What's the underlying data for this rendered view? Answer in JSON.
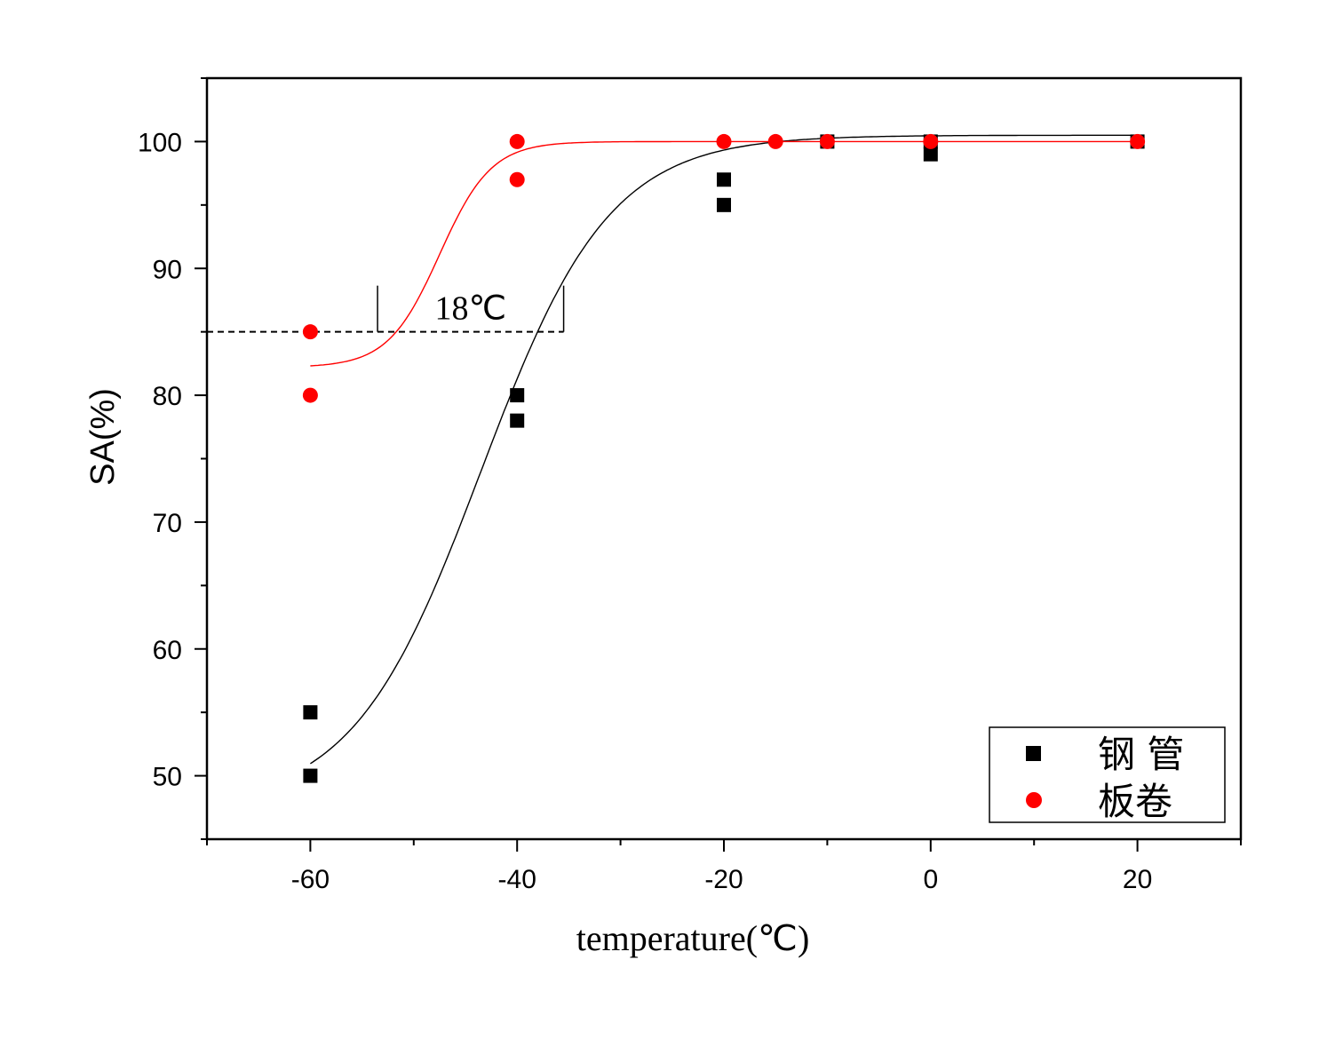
{
  "chart_data": {
    "type": "scatter",
    "title": "",
    "xlabel": "temperature(℃)",
    "ylabel": "SA(%)",
    "xlim": [
      -70,
      30
    ],
    "ylim": [
      45,
      105
    ],
    "x_major_ticks": [
      -60,
      -40,
      -20,
      0,
      20
    ],
    "y_major_ticks": [
      50,
      60,
      70,
      80,
      90,
      100
    ],
    "grid": false,
    "legend_position": "bottom-right",
    "series": [
      {
        "name": "钢 管",
        "marker": "square",
        "color": "#000000",
        "points": [
          {
            "x": -60,
            "y": 55
          },
          {
            "x": -60,
            "y": 50
          },
          {
            "x": -40,
            "y": 80
          },
          {
            "x": -40,
            "y": 78
          },
          {
            "x": -20,
            "y": 97
          },
          {
            "x": -20,
            "y": 95
          },
          {
            "x": -10,
            "y": 100
          },
          {
            "x": 0,
            "y": 100
          },
          {
            "x": 0,
            "y": 99
          },
          {
            "x": 20,
            "y": 100
          }
        ],
        "fit": {
          "bottom": 47.5,
          "top": 100.5,
          "x0": -43.5,
          "width": 6.2
        }
      },
      {
        "name": "板卷",
        "marker": "circle",
        "color": "#ff0000",
        "points": [
          {
            "x": -60,
            "y": 85
          },
          {
            "x": -60,
            "y": 80
          },
          {
            "x": -40,
            "y": 100
          },
          {
            "x": -40,
            "y": 97
          },
          {
            "x": -20,
            "y": 100
          },
          {
            "x": -15,
            "y": 100
          },
          {
            "x": -10,
            "y": 100
          },
          {
            "x": 0,
            "y": 100
          },
          {
            "x": 20,
            "y": 100
          }
        ],
        "fit": {
          "bottom": 82.2,
          "top": 100.0,
          "x0": -47.5,
          "width": 2.5
        }
      }
    ],
    "annotations": [
      {
        "text": "18℃",
        "reference_y": 85,
        "x_from": -53.5,
        "x_to": -35.5
      }
    ]
  }
}
